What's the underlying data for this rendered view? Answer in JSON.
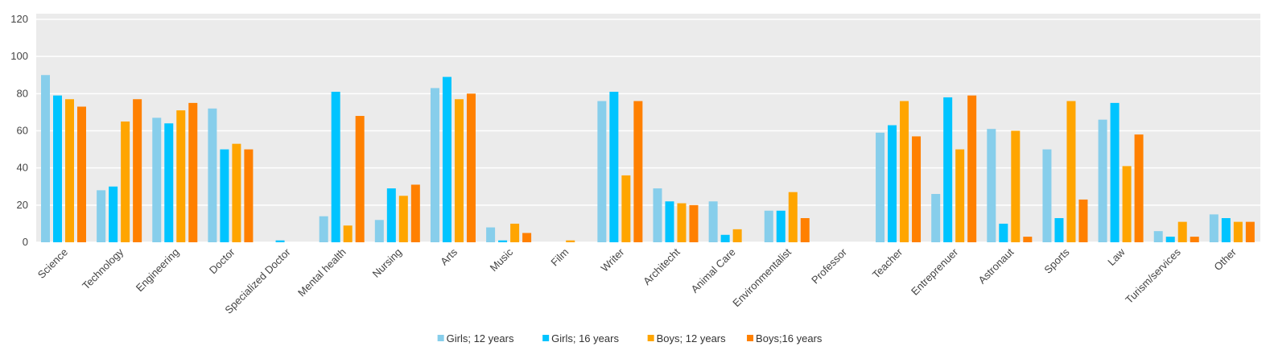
{
  "chart_data": {
    "type": "bar",
    "title": "",
    "xlabel": "",
    "ylabel": "",
    "ylim": [
      0,
      120
    ],
    "yticks": [
      0,
      20,
      40,
      60,
      80,
      100,
      120
    ],
    "grid": true,
    "legend_position": "bottom-center",
    "categories": [
      "Science",
      "Technology",
      "Engineering",
      "Doctor",
      "Specialized Doctor",
      "Mental health",
      "Nursing",
      "Arts",
      "Music",
      "Film",
      "Writer",
      "Architecht",
      "Animal Care",
      "Environmentalist",
      "Professor",
      "Teacher",
      "Entreprenuer",
      "Astronaut",
      "Sports",
      "Law",
      "Turism/services",
      "Other"
    ],
    "series": [
      {
        "name": "Girls; 12 years",
        "color": "#87ceeb",
        "values": [
          90,
          28,
          67,
          72,
          0,
          14,
          12,
          83,
          8,
          0,
          76,
          29,
          22,
          17,
          0,
          59,
          26,
          61,
          50,
          66,
          6,
          15
        ]
      },
      {
        "name": "Girls; 16 years",
        "color": "#00c4ff",
        "values": [
          79,
          30,
          64,
          50,
          1,
          81,
          29,
          89,
          1,
          0,
          81,
          22,
          4,
          17,
          0,
          63,
          78,
          10,
          13,
          75,
          3,
          13
        ]
      },
      {
        "name": "Boys; 12 years",
        "color": "#ffa500",
        "values": [
          77,
          65,
          71,
          53,
          0,
          9,
          25,
          77,
          10,
          1,
          36,
          21,
          7,
          27,
          0,
          76,
          50,
          60,
          76,
          41,
          11,
          11
        ]
      },
      {
        "name": "Boys;16 years",
        "color": "#ff8000",
        "values": [
          73,
          77,
          75,
          50,
          0,
          68,
          31,
          80,
          5,
          0,
          76,
          20,
          0,
          13,
          0,
          57,
          79,
          3,
          23,
          58,
          3,
          11
        ]
      }
    ]
  }
}
